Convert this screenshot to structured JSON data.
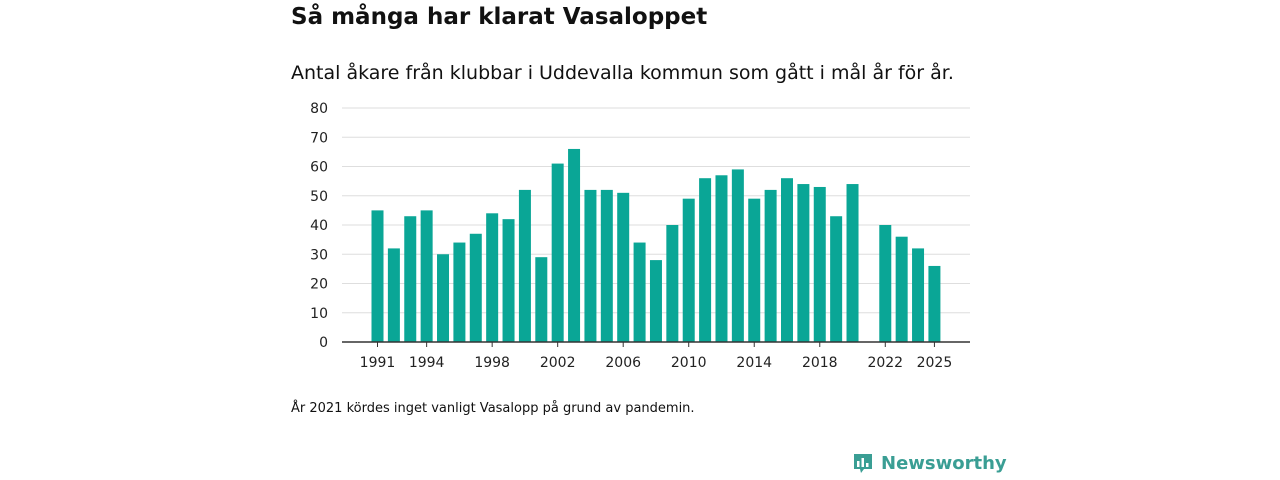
{
  "title": "Så många har klarat Vasaloppet",
  "subtitle": "Antal åkare från klubbar i Uddevalla kommun som gått i mål år för år.",
  "note": "År 2021 kördes inget vanligt Vasalopp på grund av pandemin.",
  "brand": {
    "name": "Newsworthy",
    "icon": "newsworthy-chart-icon",
    "color": "#3a9e94"
  },
  "chart_data": {
    "type": "bar",
    "title": "Så många har klarat Vasaloppet",
    "subtitle": "Antal åkare från klubbar i Uddevalla kommun som gått i mål år för år.",
    "xlabel": "",
    "ylabel": "",
    "ylim": [
      0,
      80
    ],
    "yticks": [
      0,
      10,
      20,
      30,
      40,
      50,
      60,
      70,
      80
    ],
    "xtick_labels": [
      1991,
      1994,
      1998,
      2002,
      2006,
      2010,
      2014,
      2018,
      2022,
      2025
    ],
    "grid": true,
    "bar_color": "#0aa696",
    "categories": [
      1991,
      1992,
      1993,
      1994,
      1995,
      1996,
      1997,
      1998,
      1999,
      2000,
      2001,
      2002,
      2003,
      2004,
      2005,
      2006,
      2007,
      2008,
      2009,
      2010,
      2011,
      2012,
      2013,
      2014,
      2015,
      2016,
      2017,
      2018,
      2019,
      2020,
      2021,
      2022,
      2023,
      2024,
      2025
    ],
    "values": [
      45,
      32,
      43,
      45,
      30,
      34,
      37,
      44,
      42,
      52,
      29,
      61,
      66,
      52,
      52,
      51,
      34,
      28,
      40,
      49,
      56,
      57,
      59,
      49,
      52,
      56,
      54,
      53,
      43,
      54,
      null,
      40,
      36,
      32,
      26
    ]
  }
}
